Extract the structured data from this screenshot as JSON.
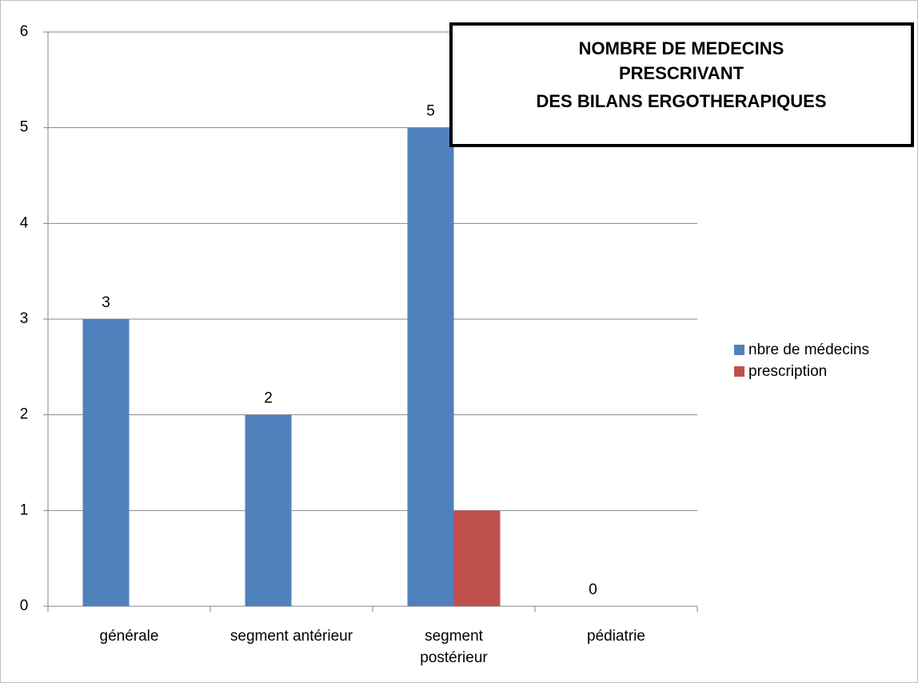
{
  "chart_data": {
    "type": "bar",
    "title": [
      "NOMBRE DE MEDECINS",
      "PRESCRIVANT",
      "DES BILANS ERGOTHERAPIQUES"
    ],
    "categories": [
      "générale",
      "segment antérieur",
      [
        "segment",
        "postérieur"
      ],
      "pédiatrie"
    ],
    "series": [
      {
        "name": "nbre de médecins",
        "color": "#4f81bd",
        "values": [
          3,
          2,
          5,
          0
        ]
      },
      {
        "name": "prescription",
        "color": "#c0504d",
        "values": [
          0,
          0,
          1,
          0
        ]
      }
    ],
    "data_labels_series": 0,
    "ylim": [
      0,
      6
    ],
    "yticks": [
      0,
      1,
      2,
      3,
      4,
      5,
      6
    ],
    "grid": true,
    "legend": "right"
  }
}
